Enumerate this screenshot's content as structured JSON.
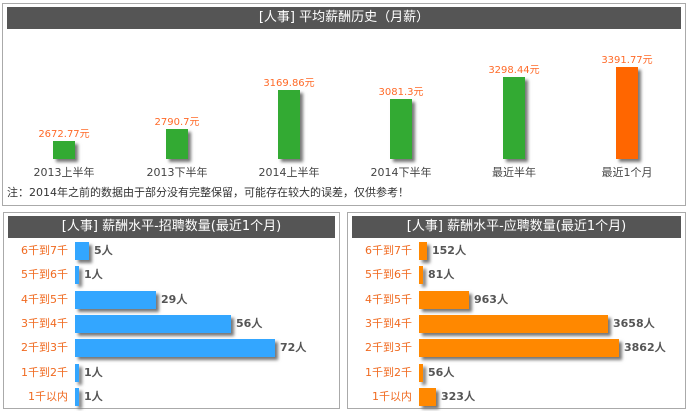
{
  "top": {
    "title": "[人事] 平均薪酬历史（月薪）",
    "note": "注：2014年之前的数据由于部分没有完整保留，可能存在较大的误差，仅供参考！",
    "bars": [
      {
        "label": "2013上半年",
        "value_label": "2672.77元",
        "value": 2672.77,
        "color": "#33aa33"
      },
      {
        "label": "2013下半年",
        "value_label": "2790.7元",
        "value": 2790.7,
        "color": "#33aa33"
      },
      {
        "label": "2014上半年",
        "value_label": "3169.86元",
        "value": 3169.86,
        "color": "#33aa33"
      },
      {
        "label": "2014下半年",
        "value_label": "3081.3元",
        "value": 3081.3,
        "color": "#33aa33"
      },
      {
        "label": "最近半年",
        "value_label": "3298.44元",
        "value": 3298.44,
        "color": "#33aa33"
      },
      {
        "label": "最近1个月",
        "value_label": "3391.77元",
        "value": 3391.77,
        "color": "#ff6600"
      }
    ]
  },
  "left": {
    "title": "[人事] 薪酬水平-招聘数量(最近1个月)",
    "color": "#33a6ff",
    "rows": [
      {
        "label": "6千到7千",
        "value_label": "5人",
        "value": 5
      },
      {
        "label": "5千到6千",
        "value_label": "1人",
        "value": 1
      },
      {
        "label": "4千到5千",
        "value_label": "29人",
        "value": 29
      },
      {
        "label": "3千到4千",
        "value_label": "56人",
        "value": 56
      },
      {
        "label": "2千到3千",
        "value_label": "72人",
        "value": 72
      },
      {
        "label": "1千到2千",
        "value_label": "1人",
        "value": 1
      },
      {
        "label": "1千以内",
        "value_label": "1人",
        "value": 1
      }
    ]
  },
  "right": {
    "title": "[人事] 薪酬水平-应聘数量(最近1个月)",
    "color": "#ff8800",
    "rows": [
      {
        "label": "6千到7千",
        "value_label": "152人",
        "value": 152
      },
      {
        "label": "5千到6千",
        "value_label": "81人",
        "value": 81
      },
      {
        "label": "4千到5千",
        "value_label": "963人",
        "value": 963
      },
      {
        "label": "3千到4千",
        "value_label": "3658人",
        "value": 3658
      },
      {
        "label": "2千到3千",
        "value_label": "3862人",
        "value": 3862
      },
      {
        "label": "1千到2千",
        "value_label": "56人",
        "value": 56
      },
      {
        "label": "1千以内",
        "value_label": "323人",
        "value": 323
      }
    ]
  },
  "chart_data": [
    {
      "type": "bar",
      "title": "[人事] 平均薪酬历史（月薪）",
      "categories": [
        "2013上半年",
        "2013下半年",
        "2014上半年",
        "2014下半年",
        "最近半年",
        "最近1个月"
      ],
      "values": [
        2672.77,
        2790.7,
        3169.86,
        3081.3,
        3298.44,
        3391.77
      ],
      "unit": "元",
      "xlabel": "",
      "ylabel": "",
      "annotation": "注：2014年之前的数据由于部分没有完整保留，可能存在较大的误差，仅供参考！"
    },
    {
      "type": "bar",
      "orientation": "horizontal",
      "title": "[人事] 薪酬水平-招聘数量(最近1个月)",
      "categories": [
        "6千到7千",
        "5千到6千",
        "4千到5千",
        "3千到4千",
        "2千到3千",
        "1千到2千",
        "1千以内"
      ],
      "values": [
        5,
        1,
        29,
        56,
        72,
        1,
        1
      ],
      "unit": "人"
    },
    {
      "type": "bar",
      "orientation": "horizontal",
      "title": "[人事] 薪酬水平-应聘数量(最近1个月)",
      "categories": [
        "6千到7千",
        "5千到6千",
        "4千到5千",
        "3千到4千",
        "2千到3千",
        "1千到2千",
        "1千以内"
      ],
      "values": [
        152,
        81,
        963,
        3658,
        3862,
        56,
        323
      ],
      "unit": "人"
    }
  ]
}
